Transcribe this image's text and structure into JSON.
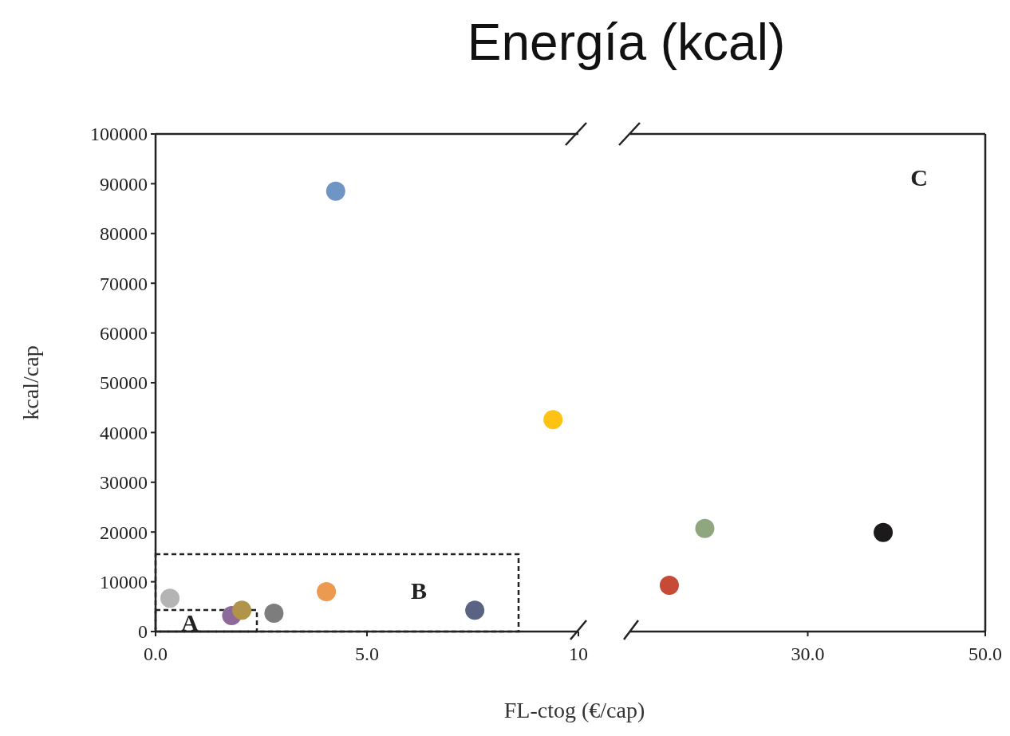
{
  "chart_data": [
    {
      "type": "scatter",
      "title": "Energía (kcal)",
      "xlabel": "FL-ctog (€/cap)",
      "ylabel": "kcal/cap",
      "x": [
        0.34,
        1.8,
        2.04,
        2.8,
        4.04,
        4.26,
        7.55,
        9.4
      ],
      "values": [
        6700,
        3200,
        4300,
        3700,
        8000,
        88500,
        4300,
        42600
      ],
      "colors": [
        "#b4b4b4",
        "#8e6a9a",
        "#b0944a",
        "#7d7d7d",
        "#ec9a50",
        "#6f95c4",
        "#5a6482",
        "#fdc214"
      ],
      "xlim": [
        0,
        10
      ],
      "ylim": [
        0,
        100000
      ],
      "xticks": [
        {
          "value": 0,
          "label": "0.0"
        },
        {
          "value": 5,
          "label": "5.0"
        },
        10
      ],
      "yticks": [
        0,
        10000,
        20000,
        30000,
        40000,
        50000,
        60000,
        70000,
        80000,
        90000,
        100000
      ],
      "marker": "circle",
      "annotations": [
        "A",
        "B"
      ]
    },
    {
      "type": "scatter",
      "x": [
        14.4,
        18.4,
        38.5
      ],
      "values": [
        9300,
        20700,
        19900
      ],
      "colors": [
        "#c64a36",
        "#8fa67e",
        "#1c1a1a"
      ],
      "xlim": [
        10,
        50
      ],
      "ylim": [
        0,
        100000
      ],
      "xticks": [
        {
          "value": 30,
          "label": "30.0"
        },
        {
          "value": 50,
          "label": "50.0"
        }
      ],
      "tick_labels": "x",
      "marker": "circle",
      "annotations": [
        "C"
      ]
    }
  ]
}
